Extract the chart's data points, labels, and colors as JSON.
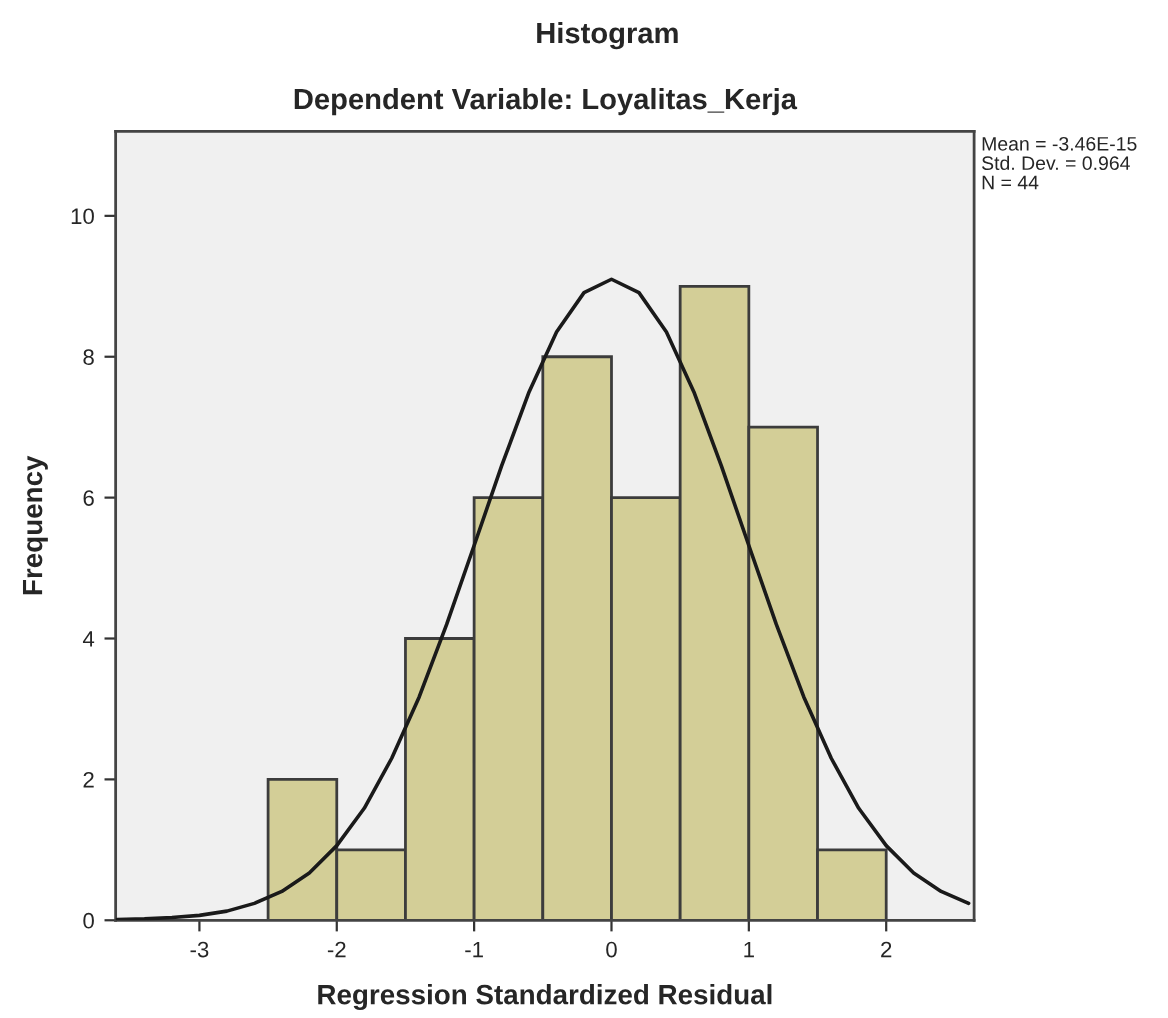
{
  "chart_data": {
    "type": "histogram",
    "title": "Histogram",
    "subtitle": "Dependent Variable: Loyalitas_Kerja",
    "xlabel": "Regression Standardized Residual",
    "ylabel": "Frequency",
    "bins": [
      -2.5,
      -2.0,
      -1.5,
      -1.0,
      -0.5,
      0.0,
      0.5,
      1.0,
      1.5,
      2.0
    ],
    "values": [
      2,
      1,
      4,
      6,
      8,
      6,
      9,
      7,
      1
    ],
    "color": "#d3ce97",
    "series": [
      {
        "type": "line",
        "color": "#1a1a1a",
        "x": [
          -3.6,
          -3.4,
          -3.2,
          -3.0,
          -2.8,
          -2.6,
          -2.4,
          -2.2,
          -2.0,
          -1.8,
          -1.6,
          -1.4,
          -1.2,
          -1.0,
          -0.8,
          -0.6,
          -0.4,
          -0.2,
          0.0,
          0.2,
          0.4,
          0.6,
          0.8,
          1.0,
          1.2,
          1.4,
          1.6,
          1.8,
          2.0,
          2.2,
          2.4,
          2.6
        ],
        "values": [
          0.01,
          0.02,
          0.04,
          0.07,
          0.13,
          0.24,
          0.41,
          0.67,
          1.06,
          1.59,
          2.3,
          3.17,
          4.2,
          5.32,
          6.45,
          7.5,
          8.35,
          8.91,
          9.1,
          8.91,
          8.35,
          7.5,
          6.45,
          5.32,
          4.2,
          3.17,
          2.3,
          1.59,
          1.06,
          0.67,
          0.41,
          0.24
        ]
      }
    ],
    "xlim": [
      -3.61,
      2.64
    ],
    "xticks": [
      -3,
      -2,
      -1,
      0,
      1,
      2
    ],
    "ylim": [
      0,
      11.2
    ],
    "yticks": [
      0,
      2,
      4,
      6,
      8,
      10
    ],
    "annotations": [
      "Mean = -3.46E-15",
      "Std. Dev. = 0.964",
      "N = 44"
    ],
    "grid": false
  }
}
